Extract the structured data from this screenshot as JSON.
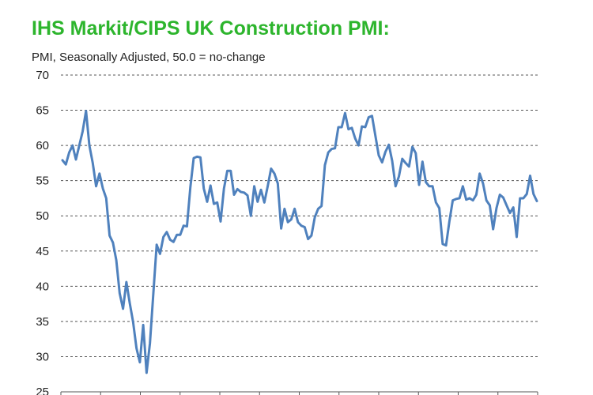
{
  "chart_data": {
    "type": "line",
    "title": "IHS Markit/CIPS UK Construction PMI:",
    "subtitle": "PMI, Seasonally Adjusted, 50.0 = no-change",
    "xlabel": "",
    "ylabel": "",
    "ylim": [
      25,
      70
    ],
    "yticks": [
      25,
      30,
      35,
      40,
      45,
      50,
      55,
      60,
      65,
      70
    ],
    "grid": "horizontal dashed",
    "legend": "none",
    "series": [
      {
        "color": "#4f81bd",
        "values": [
          57.9,
          57.3,
          59.0,
          60.0,
          58.0,
          60.0,
          62.0,
          64.9,
          60.0,
          57.5,
          54.2,
          56.0,
          53.9,
          52.5,
          47.2,
          46.2,
          43.7,
          39.0,
          36.8,
          40.6,
          37.6,
          34.9,
          31.2,
          29.2,
          34.5,
          27.7,
          31.9,
          38.9,
          45.9,
          44.6,
          47.0,
          47.7,
          46.6,
          46.3,
          47.3,
          47.3,
          48.6,
          48.5,
          54.0,
          58.2,
          58.4,
          58.3,
          53.9,
          52.0,
          54.3,
          51.7,
          51.9,
          49.2,
          53.9,
          56.4,
          56.4,
          53.0,
          53.8,
          53.4,
          53.3,
          52.9,
          50.0,
          54.2,
          52.0,
          53.7,
          51.9,
          54.2,
          56.7,
          56.0,
          54.6,
          48.2,
          51.0,
          49.1,
          49.5,
          51.0,
          49.1,
          48.6,
          48.4,
          46.7,
          47.2,
          49.8,
          51.0,
          51.4,
          57.2,
          59.0,
          59.5,
          59.6,
          62.6,
          62.6,
          64.6,
          62.3,
          62.5,
          61.0,
          60.0,
          62.7,
          62.6,
          64.0,
          64.2,
          61.4,
          58.6,
          57.6,
          59.1,
          60.1,
          57.8,
          54.2,
          55.6,
          58.1,
          57.5,
          57.0,
          59.8,
          58.9,
          54.4,
          57.7,
          54.8,
          54.2,
          54.2,
          51.9,
          51.1,
          46.0,
          45.8,
          49.2,
          52.2,
          52.4,
          52.5,
          54.2,
          52.3,
          52.5,
          52.2,
          53.0,
          56.0,
          54.6,
          52.2,
          51.5,
          48.1,
          51.1,
          53.0,
          52.6,
          51.5,
          50.4,
          51.2,
          47.0,
          52.5,
          52.5,
          53.1,
          55.7,
          53.1,
          52.1
        ]
      }
    ]
  }
}
